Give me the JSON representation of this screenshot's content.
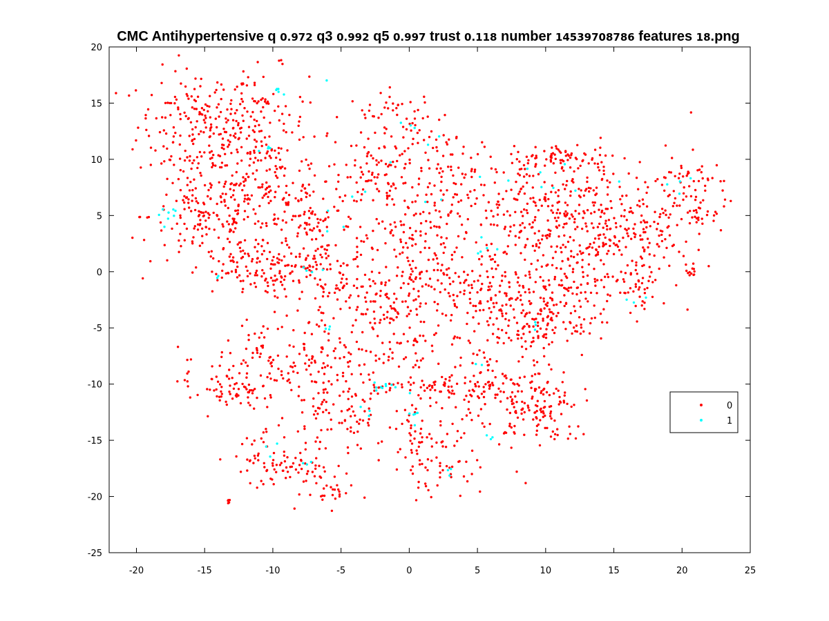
{
  "chart_data": {
    "type": "scatter",
    "title_parts": [
      {
        "text": "CMC Antihypertensive q ",
        "style": "main"
      },
      {
        "text": "0.972",
        "style": "num"
      },
      {
        "text": " q3 ",
        "style": "main"
      },
      {
        "text": "0.992",
        "style": "num"
      },
      {
        "text": " q5 ",
        "style": "main"
      },
      {
        "text": "0.997",
        "style": "num"
      },
      {
        "text": " trust ",
        "style": "main"
      },
      {
        "text": "0.118",
        "style": "num"
      },
      {
        "text": " number ",
        "style": "main"
      },
      {
        "text": "14539708786",
        "style": "num"
      },
      {
        "text": " features ",
        "style": "main"
      },
      {
        "text": "18",
        "style": "num"
      },
      {
        "text": ".png",
        "style": "main"
      }
    ],
    "xlabel": "",
    "ylabel": "",
    "xlim": [
      -22,
      25
    ],
    "ylim": [
      -25,
      20
    ],
    "xticks": [
      -20,
      -15,
      -10,
      -5,
      0,
      5,
      10,
      15,
      20,
      25
    ],
    "yticks": [
      -25,
      -20,
      -15,
      -10,
      -5,
      0,
      5,
      10,
      15,
      20
    ],
    "grid": false,
    "legend_position": "right",
    "series": [
      {
        "name": "0",
        "color": "#ff0000",
        "clusters": [
          {
            "cx": -15.5,
            "cy": 13.0,
            "sx": 2.2,
            "sy": 2.5,
            "n": 180
          },
          {
            "cx": -11.0,
            "cy": 13.0,
            "sx": 1.8,
            "sy": 2.5,
            "n": 120
          },
          {
            "cx": -15.0,
            "cy": 5.0,
            "sx": 2.0,
            "sy": 2.2,
            "n": 150
          },
          {
            "cx": -10.5,
            "cy": 6.0,
            "sx": 2.2,
            "sy": 3.0,
            "n": 160
          },
          {
            "cx": -7.0,
            "cy": 4.0,
            "sx": 2.0,
            "sy": 3.0,
            "n": 120
          },
          {
            "cx": -12.0,
            "cy": 0.0,
            "sx": 2.0,
            "sy": 1.2,
            "n": 80
          },
          {
            "cx": -5.5,
            "cy": -1.0,
            "sx": 2.0,
            "sy": 1.5,
            "n": 80
          },
          {
            "cx": -2.0,
            "cy": 8.5,
            "sx": 1.8,
            "sy": 2.5,
            "n": 110
          },
          {
            "cx": 3.0,
            "cy": 8.0,
            "sx": 2.0,
            "sy": 2.5,
            "n": 110
          },
          {
            "cx": -1.0,
            "cy": 14.0,
            "sx": 1.8,
            "sy": 1.0,
            "n": 40
          },
          {
            "cx": 0.5,
            "cy": 1.0,
            "sx": 1.5,
            "sy": 3.0,
            "n": 90
          },
          {
            "cx": -1.5,
            "cy": -3.5,
            "sx": 2.0,
            "sy": 2.0,
            "n": 80
          },
          {
            "cx": 3.0,
            "cy": -2.0,
            "sx": 2.0,
            "sy": 2.0,
            "n": 70
          },
          {
            "cx": 9.0,
            "cy": 6.0,
            "sx": 2.5,
            "sy": 2.5,
            "n": 180
          },
          {
            "cx": 13.0,
            "cy": 4.0,
            "sx": 2.0,
            "sy": 2.5,
            "n": 150
          },
          {
            "cx": 11.5,
            "cy": 10.2,
            "sx": 2.0,
            "sy": 0.5,
            "n": 60
          },
          {
            "cx": 7.0,
            "cy": -2.0,
            "sx": 2.0,
            "sy": 2.5,
            "n": 140
          },
          {
            "cx": 12.0,
            "cy": -1.5,
            "sx": 2.0,
            "sy": 2.0,
            "n": 120
          },
          {
            "cx": 9.5,
            "cy": -5.0,
            "sx": 1.5,
            "sy": 0.8,
            "n": 60
          },
          {
            "cx": 17.0,
            "cy": 3.0,
            "sx": 1.5,
            "sy": 2.5,
            "n": 100
          },
          {
            "cx": 20.0,
            "cy": 7.0,
            "sx": 1.8,
            "sy": 2.0,
            "n": 100
          },
          {
            "cx": 17.0,
            "cy": -2.0,
            "sx": 0.7,
            "sy": 1.0,
            "n": 25
          },
          {
            "cx": 20.7,
            "cy": 0.0,
            "sx": 0.2,
            "sy": 0.3,
            "n": 12
          },
          {
            "cx": -14.0,
            "cy": -9.5,
            "sx": 1.5,
            "sy": 1.5,
            "n": 45
          },
          {
            "cx": -9.5,
            "cy": -7.5,
            "sx": 2.0,
            "sy": 1.8,
            "n": 90
          },
          {
            "cx": -5.5,
            "cy": -8.0,
            "sx": 1.5,
            "sy": 2.0,
            "n": 60
          },
          {
            "cx": -1.5,
            "cy": -7.0,
            "sx": 1.5,
            "sy": 1.0,
            "n": 40
          },
          {
            "cx": 1.5,
            "cy": -10.3,
            "sx": 3.0,
            "sy": 0.5,
            "n": 70
          },
          {
            "cx": 7.0,
            "cy": -11.0,
            "sx": 2.5,
            "sy": 2.5,
            "n": 160
          },
          {
            "cx": 10.0,
            "cy": -13.0,
            "sx": 1.5,
            "sy": 1.5,
            "n": 70
          },
          {
            "cx": -12.5,
            "cy": -11.0,
            "sx": 1.2,
            "sy": 0.6,
            "n": 30
          },
          {
            "cx": -5.0,
            "cy": -13.0,
            "sx": 1.8,
            "sy": 1.5,
            "n": 70
          },
          {
            "cx": 0.5,
            "cy": -14.5,
            "sx": 1.0,
            "sy": 2.0,
            "n": 50
          },
          {
            "cx": 2.0,
            "cy": -17.5,
            "sx": 1.0,
            "sy": 1.2,
            "n": 30
          },
          {
            "cx": -10.5,
            "cy": -16.5,
            "sx": 1.2,
            "sy": 1.2,
            "n": 40
          },
          {
            "cx": -8.0,
            "cy": -17.5,
            "sx": 1.5,
            "sy": 1.0,
            "n": 50
          },
          {
            "cx": -6.0,
            "cy": -19.5,
            "sx": 1.0,
            "sy": 0.8,
            "n": 25
          },
          {
            "cx": -13.2,
            "cy": -20.3,
            "sx": 0.1,
            "sy": 0.2,
            "n": 5
          },
          {
            "cx": -19.8,
            "cy": 4.8,
            "sx": 0.1,
            "sy": 0.1,
            "n": 2
          }
        ]
      },
      {
        "name": "1",
        "color": "#00ffff",
        "clusters": [
          {
            "cx": -17.8,
            "cy": 5.2,
            "sx": 0.6,
            "sy": 0.5,
            "n": 8
          },
          {
            "cx": -9.5,
            "cy": 16.0,
            "sx": 0.3,
            "sy": 0.2,
            "n": 5
          },
          {
            "cx": -6.0,
            "cy": 17.0,
            "sx": 0.05,
            "sy": 0.05,
            "n": 1
          },
          {
            "cx": -10.5,
            "cy": 10.5,
            "sx": 0.4,
            "sy": 0.4,
            "n": 4
          },
          {
            "cx": -7.0,
            "cy": 0.5,
            "sx": 0.8,
            "sy": 0.8,
            "n": 4
          },
          {
            "cx": -5.0,
            "cy": 5.0,
            "sx": 1.0,
            "sy": 1.5,
            "n": 5
          },
          {
            "cx": 0.0,
            "cy": 13.0,
            "sx": 0.3,
            "sy": 0.3,
            "n": 3
          },
          {
            "cx": 1.0,
            "cy": 8.0,
            "sx": 1.5,
            "sy": 2.0,
            "n": 5
          },
          {
            "cx": 5.5,
            "cy": 2.0,
            "sx": 0.6,
            "sy": 0.8,
            "n": 5
          },
          {
            "cx": 7.5,
            "cy": 8.0,
            "sx": 1.0,
            "sy": 1.0,
            "n": 4
          },
          {
            "cx": 12.0,
            "cy": 7.0,
            "sx": 1.5,
            "sy": 2.0,
            "n": 5
          },
          {
            "cx": 16.5,
            "cy": -2.5,
            "sx": 0.6,
            "sy": 0.3,
            "n": 3
          },
          {
            "cx": 19.5,
            "cy": 8.0,
            "sx": 1.0,
            "sy": 1.0,
            "n": 4
          },
          {
            "cx": 9.5,
            "cy": -4.5,
            "sx": 0.6,
            "sy": 0.4,
            "n": 3
          },
          {
            "cx": -2.0,
            "cy": -10.2,
            "sx": 0.8,
            "sy": 0.2,
            "n": 10
          },
          {
            "cx": 0.5,
            "cy": -12.8,
            "sx": 0.3,
            "sy": 0.5,
            "n": 6
          },
          {
            "cx": 3.0,
            "cy": -17.8,
            "sx": 0.2,
            "sy": 0.2,
            "n": 3
          },
          {
            "cx": -3.5,
            "cy": -12.5,
            "sx": 0.5,
            "sy": 0.4,
            "n": 3
          },
          {
            "cx": -7.5,
            "cy": -17.0,
            "sx": 0.3,
            "sy": 0.3,
            "n": 3
          },
          {
            "cx": -10.0,
            "cy": -16.0,
            "sx": 0.3,
            "sy": 0.3,
            "n": 3
          },
          {
            "cx": -6.0,
            "cy": -5.2,
            "sx": 0.3,
            "sy": 0.3,
            "n": 3
          },
          {
            "cx": 5.0,
            "cy": -8.0,
            "sx": 0.3,
            "sy": 0.3,
            "n": 2
          },
          {
            "cx": 6.0,
            "cy": -15.0,
            "sx": 0.4,
            "sy": 0.3,
            "n": 3
          },
          {
            "cx": -14.5,
            "cy": -0.5,
            "sx": 0.3,
            "sy": 0.2,
            "n": 2
          }
        ]
      }
    ]
  }
}
